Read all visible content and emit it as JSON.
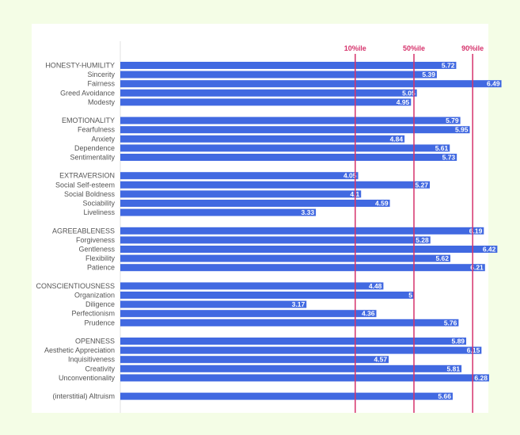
{
  "chart_data": {
    "type": "bar",
    "orientation": "horizontal",
    "bar_color": "#4169e1",
    "reference_line_color": "#d6336c",
    "reference_lines": [
      {
        "label": "10%ile",
        "value": 4.0
      },
      {
        "label": "50%ile",
        "value": 5.0
      },
      {
        "label": "90%ile",
        "value": 6.0
      }
    ],
    "xlim": [
      0,
      7
    ],
    "groups": [
      {
        "items": [
          {
            "label": "HONESTY-HUMILITY",
            "value": 5.72
          },
          {
            "label": "Sincerity",
            "value": 5.39
          },
          {
            "label": "Fairness",
            "value": 6.49
          },
          {
            "label": "Greed Avoidance",
            "value": 5.05
          },
          {
            "label": "Modesty",
            "value": 4.95
          }
        ]
      },
      {
        "items": [
          {
            "label": "EMOTIONALITY",
            "value": 5.79
          },
          {
            "label": "Fearfulness",
            "value": 5.95
          },
          {
            "label": "Anxiety",
            "value": 4.84
          },
          {
            "label": "Dependence",
            "value": 5.61
          },
          {
            "label": "Sentimentality",
            "value": 5.73
          }
        ]
      },
      {
        "items": [
          {
            "label": "EXTRAVERSION",
            "value": 4.05
          },
          {
            "label": "Social Self-esteem",
            "value": 5.27
          },
          {
            "label": "Social Boldness",
            "value": 4.1
          },
          {
            "label": "Sociability",
            "value": 4.59
          },
          {
            "label": "Liveliness",
            "value": 3.33
          }
        ]
      },
      {
        "items": [
          {
            "label": "AGREEABLENESS",
            "value": 6.19
          },
          {
            "label": "Forgiveness",
            "value": 5.28
          },
          {
            "label": "Gentleness",
            "value": 6.42
          },
          {
            "label": "Flexibility",
            "value": 5.62
          },
          {
            "label": "Patience",
            "value": 6.21
          }
        ]
      },
      {
        "items": [
          {
            "label": "CONSCIENTIOUSNESS",
            "value": 4.48
          },
          {
            "label": "Organization",
            "value": 5
          },
          {
            "label": "Diligence",
            "value": 3.17
          },
          {
            "label": "Perfectionism",
            "value": 4.36
          },
          {
            "label": "Prudence",
            "value": 5.76
          }
        ]
      },
      {
        "items": [
          {
            "label": "OPENNESS",
            "value": 5.89
          },
          {
            "label": "Aesthetic Appreciation",
            "value": 6.15
          },
          {
            "label": "Inquisitiveness",
            "value": 4.57
          },
          {
            "label": "Creativity",
            "value": 5.81
          },
          {
            "label": "Unconventionality",
            "value": 6.28
          }
        ]
      },
      {
        "items": [
          {
            "label": "(interstitial) Altruism",
            "value": 5.66
          }
        ]
      }
    ]
  }
}
